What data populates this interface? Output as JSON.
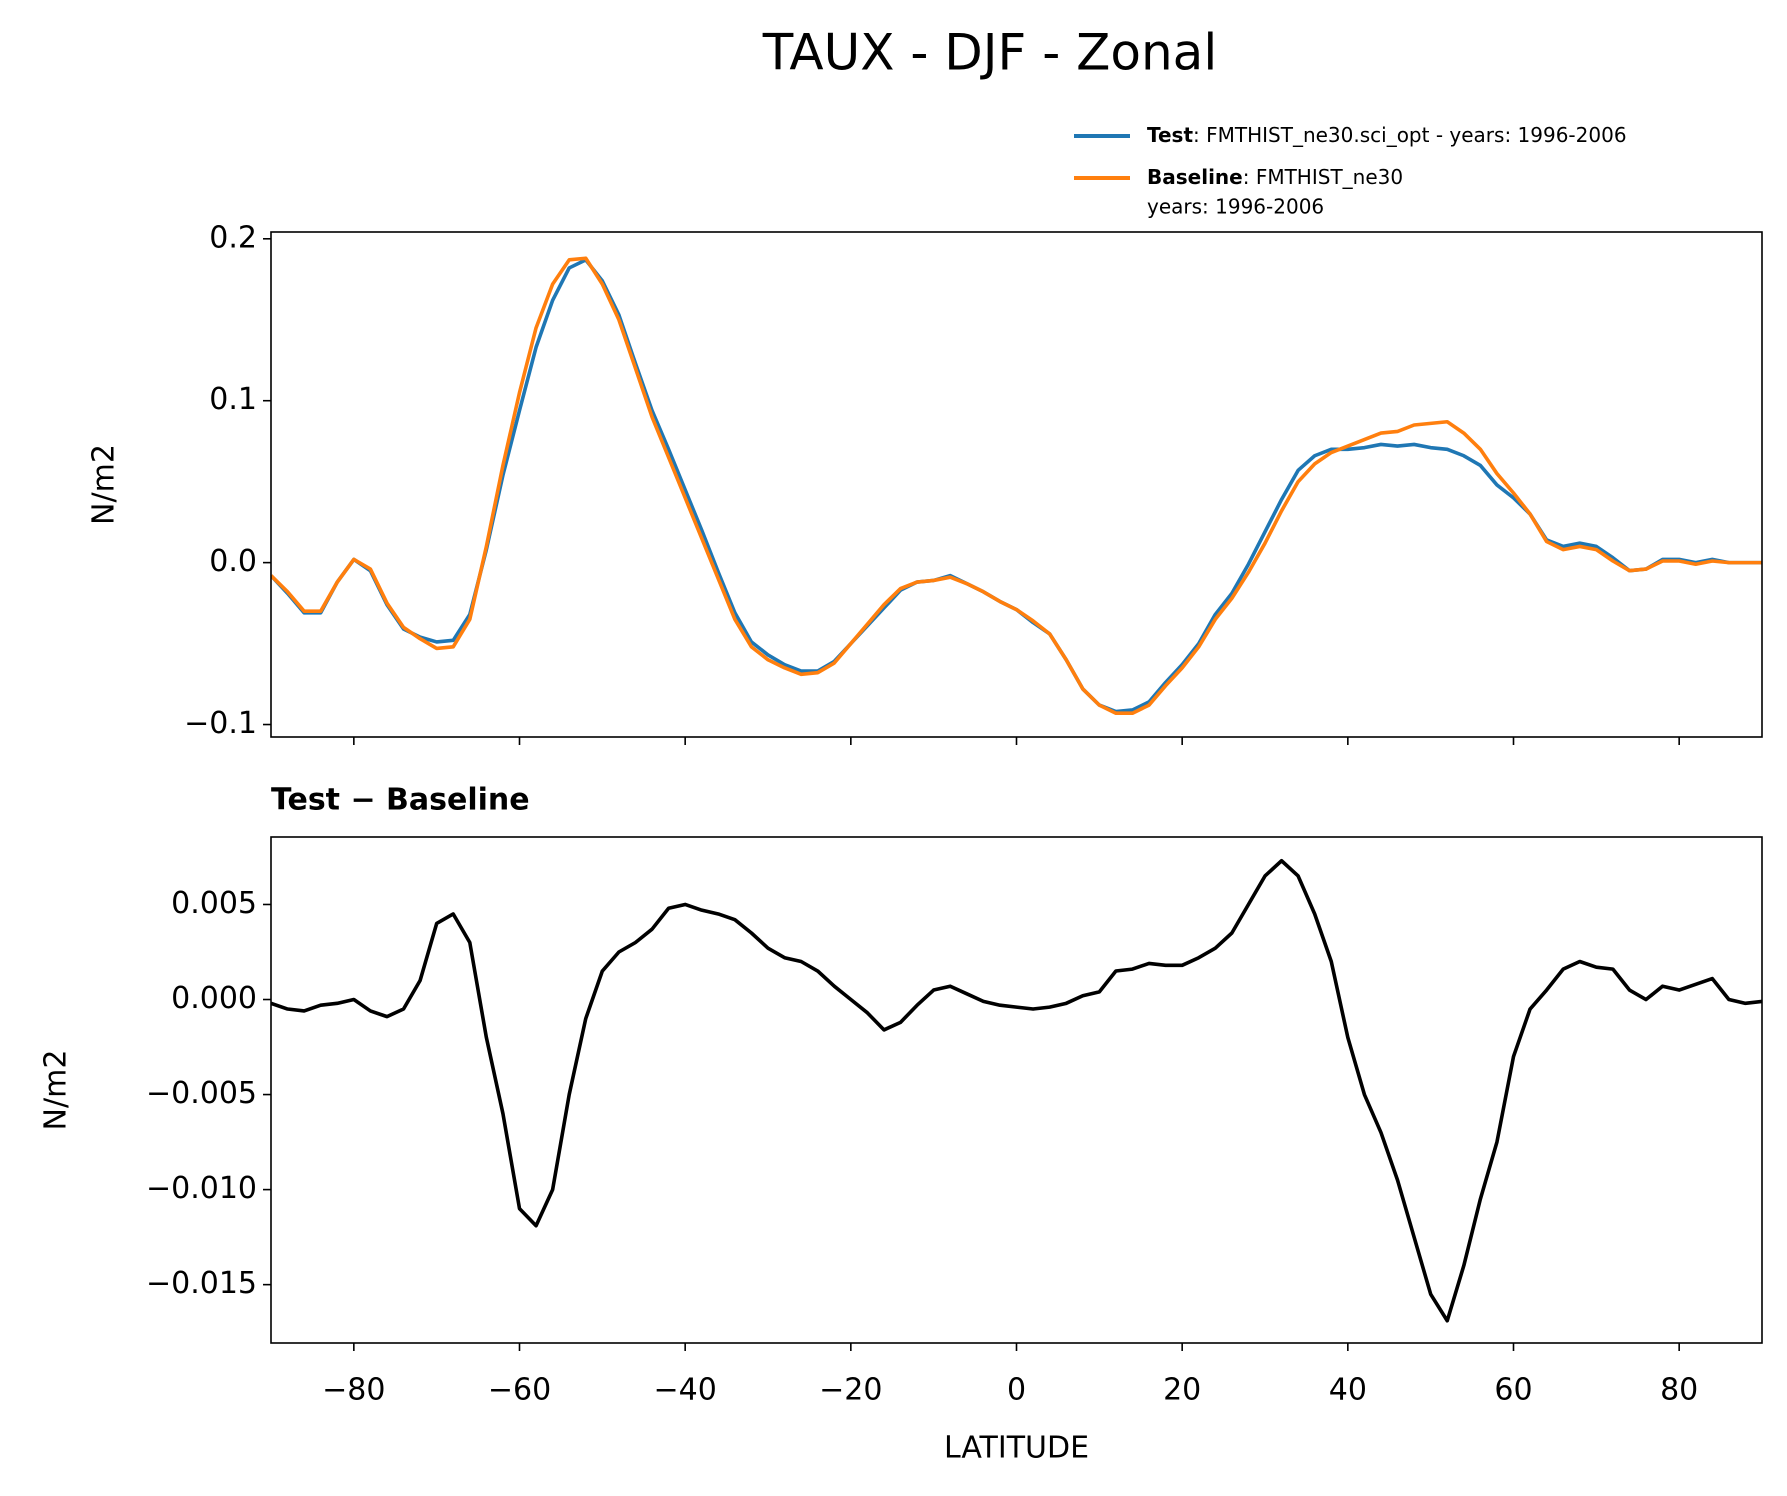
{
  "title": "TAUX - DJF - Zonal",
  "chart_data": [
    {
      "type": "line",
      "ylabel": "N/m2",
      "x": [
        -90,
        -88,
        -86,
        -84,
        -82,
        -80,
        -78,
        -76,
        -74,
        -72,
        -70,
        -68,
        -66,
        -64,
        -62,
        -60,
        -58,
        -56,
        -54,
        -52,
        -50,
        -48,
        -46,
        -44,
        -42,
        -40,
        -38,
        -36,
        -34,
        -32,
        -30,
        -28,
        -26,
        -24,
        -22,
        -20,
        -18,
        -16,
        -14,
        -12,
        -10,
        -8,
        -6,
        -4,
        -2,
        0,
        2,
        4,
        6,
        8,
        10,
        12,
        14,
        16,
        18,
        20,
        22,
        24,
        26,
        28,
        30,
        32,
        34,
        36,
        38,
        40,
        42,
        44,
        46,
        48,
        50,
        52,
        54,
        56,
        58,
        60,
        62,
        64,
        66,
        68,
        70,
        72,
        74,
        76,
        78,
        80,
        82,
        84,
        86,
        88,
        90
      ],
      "series": [
        {
          "name": "Test",
          "label_lines": [
            ": FMTHIST_ne30.sci_opt - years: 1996-2006"
          ],
          "color": "#1f77b4",
          "values": [
            -0.008,
            -0.019,
            -0.031,
            -0.031,
            -0.012,
            0.002,
            -0.005,
            -0.026,
            -0.041,
            -0.046,
            -0.049,
            -0.048,
            -0.032,
            0.008,
            0.054,
            0.094,
            0.133,
            0.162,
            0.182,
            0.187,
            0.174,
            0.153,
            0.123,
            0.094,
            0.07,
            0.045,
            0.02,
            -0.006,
            -0.031,
            -0.049,
            -0.057,
            -0.063,
            -0.067,
            -0.067,
            -0.061,
            -0.05,
            -0.039,
            -0.028,
            -0.017,
            -0.012,
            -0.011,
            -0.008,
            -0.013,
            -0.018,
            -0.024,
            -0.029,
            -0.037,
            -0.044,
            -0.06,
            -0.078,
            -0.088,
            -0.092,
            -0.091,
            -0.086,
            -0.074,
            -0.063,
            -0.05,
            -0.032,
            -0.019,
            -0.001,
            0.019,
            0.039,
            0.057,
            0.066,
            0.07,
            0.07,
            0.071,
            0.073,
            0.072,
            0.073,
            0.071,
            0.07,
            0.066,
            0.06,
            0.048,
            0.04,
            0.03,
            0.014,
            0.01,
            0.012,
            0.01,
            0.003,
            -0.005,
            -0.004,
            0.002,
            0.002,
            0,
            0.002,
            0,
            0,
            0
          ]
        },
        {
          "name": "Baseline",
          "label_lines": [
            ": FMTHIST_ne30",
            "years: 1996-2006"
          ],
          "color": "#ff7f0e",
          "values": [
            -0.008,
            -0.018,
            -0.03,
            -0.03,
            -0.012,
            0.002,
            -0.004,
            -0.025,
            -0.04,
            -0.047,
            -0.053,
            -0.052,
            -0.035,
            0.01,
            0.06,
            0.105,
            0.145,
            0.172,
            0.187,
            0.188,
            0.172,
            0.15,
            0.12,
            0.09,
            0.065,
            0.04,
            0.015,
            -0.01,
            -0.035,
            -0.052,
            -0.06,
            -0.065,
            -0.069,
            -0.068,
            -0.062,
            -0.05,
            -0.038,
            -0.026,
            -0.016,
            -0.012,
            -0.011,
            -0.009,
            -0.013,
            -0.018,
            -0.024,
            -0.029,
            -0.036,
            -0.044,
            -0.06,
            -0.078,
            -0.088,
            -0.093,
            -0.093,
            -0.088,
            -0.076,
            -0.065,
            -0.052,
            -0.035,
            -0.022,
            -0.006,
            0.012,
            0.032,
            0.05,
            0.061,
            0.068,
            0.072,
            0.076,
            0.08,
            0.081,
            0.085,
            0.086,
            0.087,
            0.08,
            0.07,
            0.055,
            0.043,
            0.03,
            0.013,
            0.008,
            0.01,
            0.008,
            0.001,
            -0.005,
            -0.004,
            0.001,
            0.001,
            -0.001,
            0.001,
            0,
            0,
            0
          ]
        }
      ],
      "xlim": [
        -90,
        90
      ],
      "xticks": [
        -80,
        -60,
        -40,
        -20,
        0,
        20,
        40,
        60,
        80
      ],
      "show_xtick_labels": false,
      "ylim": [
        -0.1077,
        0.2042
      ],
      "yticks": [
        {
          "value": -0.1,
          "label": "−0.1"
        },
        {
          "value": 0,
          "label": "0.0"
        },
        0.1,
        0.2
      ],
      "legend": "upper right"
    },
    {
      "type": "line",
      "title": "Test − Baseline",
      "ylabel": "N/m2",
      "xlabel": "LATITUDE",
      "x": [
        -90,
        -88,
        -86,
        -84,
        -82,
        -80,
        -78,
        -76,
        -74,
        -72,
        -70,
        -68,
        -66,
        -64,
        -62,
        -60,
        -58,
        -56,
        -54,
        -52,
        -50,
        -48,
        -46,
        -44,
        -42,
        -40,
        -38,
        -36,
        -34,
        -32,
        -30,
        -28,
        -26,
        -24,
        -22,
        -20,
        -18,
        -16,
        -14,
        -12,
        -10,
        -8,
        -6,
        -4,
        -2,
        0,
        2,
        4,
        6,
        8,
        10,
        12,
        14,
        16,
        18,
        20,
        22,
        24,
        26,
        28,
        30,
        32,
        34,
        36,
        38,
        40,
        42,
        44,
        46,
        48,
        50,
        52,
        54,
        56,
        58,
        60,
        62,
        64,
        66,
        68,
        70,
        72,
        74,
        76,
        78,
        80,
        82,
        84,
        86,
        88,
        90
      ],
      "color": "#000000",
      "values": [
        -0.0002,
        -0.0005,
        -0.0006,
        -0.0003,
        -0.0002,
        0,
        -0.0006,
        -0.0009,
        -0.0005,
        0.001,
        0.004,
        0.0045,
        0.003,
        -0.002,
        -0.006,
        -0.011,
        -0.0119,
        -0.01,
        -0.005,
        -0.001,
        0.0015,
        0.0025,
        0.003,
        0.0037,
        0.0048,
        0.005,
        0.0047,
        0.0045,
        0.0042,
        0.0035,
        0.0027,
        0.0022,
        0.002,
        0.0015,
        0.0007,
        0,
        -0.0007,
        -0.0016,
        -0.0012,
        -0.0003,
        0.0005,
        0.0007,
        0.0003,
        -0.0001,
        -0.0003,
        -0.0004,
        -0.0005,
        -0.0004,
        -0.0002,
        0.0002,
        0.0004,
        0.0015,
        0.0016,
        0.0019,
        0.0018,
        0.0018,
        0.0022,
        0.0027,
        0.0035,
        0.005,
        0.0065,
        0.0073,
        0.0065,
        0.0045,
        0.002,
        -0.002,
        -0.005,
        -0.007,
        -0.0095,
        -0.0125,
        -0.0155,
        -0.0169,
        -0.014,
        -0.0105,
        -0.0075,
        -0.003,
        -0.0005,
        0.0005,
        0.0016,
        0.002,
        0.0017,
        0.0016,
        0.0005,
        0,
        0.0007,
        0.0005,
        0.0008,
        0.0011,
        0,
        -0.0002,
        -0.0001
      ],
      "xlim": [
        -90,
        90
      ],
      "xticks": [
        {
          "value": -80,
          "label": "−80"
        },
        {
          "value": -60,
          "label": "−60"
        },
        {
          "value": -40,
          "label": "−40"
        },
        {
          "value": -20,
          "label": "−20"
        },
        0,
        20,
        40,
        60,
        80
      ],
      "show_xtick_labels": true,
      "ylim": [
        -0.01807,
        0.00855
      ],
      "yticks": [
        {
          "value": -0.015,
          "label": "−0.015"
        },
        {
          "value": -0.01,
          "label": "−0.010"
        },
        {
          "value": -0.005,
          "label": "−0.005"
        },
        {
          "value": 0,
          "label": "0.000"
        },
        0.005
      ]
    }
  ]
}
